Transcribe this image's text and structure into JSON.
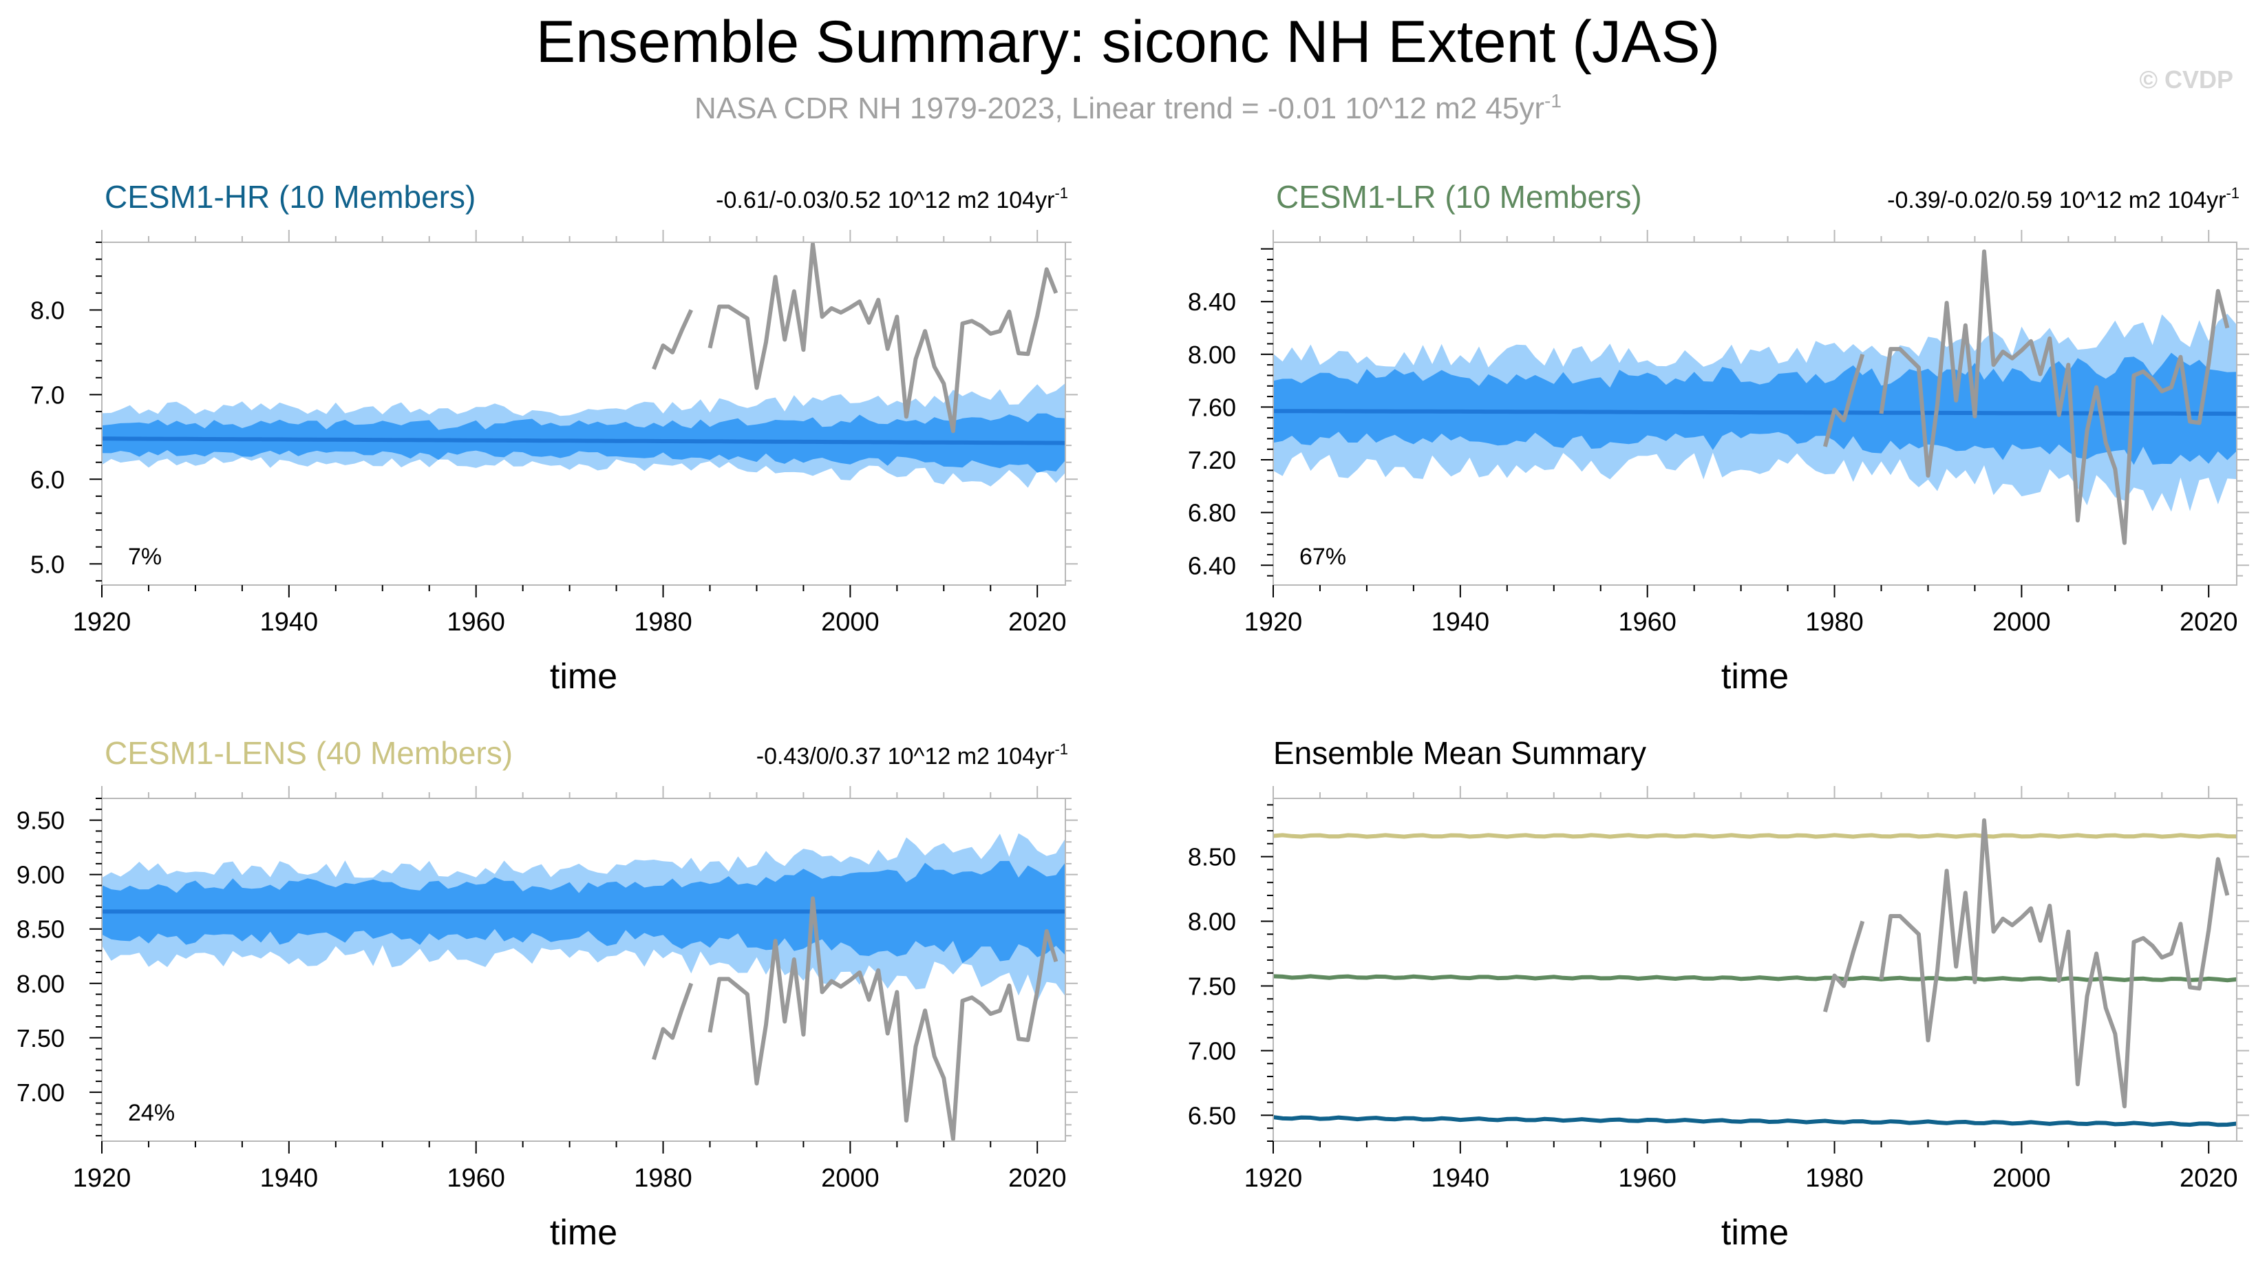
{
  "figure": {
    "title": "Ensemble Summary: siconc NH Extent (JAS)",
    "subtitle_base": "NASA CDR NH 1979-2023, Linear trend = -0.01 10^12 m2 45yr",
    "subtitle_exp": "-1",
    "watermark": "© CVDP"
  },
  "colors": {
    "band_outer": "#9fd0fb",
    "band_inner": "#3a9cf5",
    "ens_mean": "#1f78d8",
    "obs": "#999999",
    "axis": "#000000",
    "title": "#000000",
    "subtitle": "#a0a0a0",
    "watermark": "#d6d6d6"
  },
  "obs_years": [
    1979,
    1980,
    1981,
    1982,
    1983,
    1984,
    1985,
    1986,
    1987,
    1988,
    1989,
    1990,
    1991,
    1992,
    1993,
    1994,
    1995,
    1996,
    1997,
    1998,
    1999,
    2000,
    2001,
    2002,
    2003,
    2004,
    2005,
    2006,
    2007,
    2008,
    2009,
    2010,
    2011,
    2012,
    2013,
    2014,
    2015,
    2016,
    2017,
    2018,
    2019,
    2020,
    2021,
    2022,
    2023
  ],
  "obs_values": [
    7.3,
    7.58,
    7.5,
    7.76,
    8.0,
    null,
    7.55,
    8.04,
    8.04,
    7.97,
    7.9,
    7.08,
    7.62,
    8.39,
    7.65,
    8.22,
    7.53,
    8.78,
    7.92,
    8.02,
    7.97,
    8.03,
    8.1,
    7.85,
    8.12,
    7.54,
    7.92,
    6.74,
    7.42,
    7.75,
    7.33,
    7.13,
    6.57,
    7.84,
    7.87,
    7.81,
    7.72,
    7.75,
    7.98,
    7.49,
    7.48,
    7.93,
    8.48,
    8.2,
    null
  ],
  "charts": [
    {
      "type": "area",
      "title": "CESM1-HR (10 Members)",
      "title_color": "#10628c",
      "trend_base": "-0.61/-0.03/0.52 10^12 m2 104yr",
      "trend_exp": "-1",
      "percent_label": "7%",
      "xlabel": "time",
      "xlim": [
        1920,
        2023
      ],
      "xticks": [
        1920,
        1940,
        1960,
        1980,
        2000,
        2020
      ],
      "xtick_labels": [
        "1920",
        "1940",
        "1960",
        "1980",
        "2000",
        "2020"
      ],
      "ylim": [
        4.75,
        8.8
      ],
      "yticks": [
        5.0,
        6.0,
        7.0,
        8.0
      ],
      "ytick_labels": [
        "5.0",
        "6.0",
        "7.0",
        "8.0"
      ],
      "ens": {
        "mean": 6.48,
        "slope": -0.0005,
        "s1": 0.19,
        "s2": 0.17,
        "o1": 0.36,
        "o2": 0.26,
        "amp": 0.6,
        "seed": 11
      }
    },
    {
      "type": "area",
      "title": "CESM1-LR (10 Members)",
      "title_color": "#5f8a5f",
      "trend_base": "-0.39/-0.02/0.59 10^12 m2 104yr",
      "trend_exp": "-1",
      "percent_label": "67%",
      "xlabel": "time",
      "xlim": [
        1920,
        2023
      ],
      "xticks": [
        1920,
        1940,
        1960,
        1980,
        2000,
        2020
      ],
      "xtick_labels": [
        "1920",
        "1940",
        "1960",
        "1980",
        "2000",
        "2020"
      ],
      "ylim": [
        6.25,
        8.85
      ],
      "yticks": [
        6.4,
        6.8,
        7.2,
        7.6,
        8.0,
        8.4
      ],
      "ytick_labels": [
        "6.40",
        "6.80",
        "7.20",
        "7.60",
        "8.00",
        "8.40"
      ],
      "ens": {
        "mean": 7.57,
        "slope": -0.0002,
        "s1": 0.26,
        "s2": 0.22,
        "o1": 0.42,
        "o2": 0.38,
        "amp": 0.55,
        "seed": 23
      }
    },
    {
      "type": "area",
      "title": "CESM1-LENS (40 Members)",
      "title_color": "#cbc483",
      "trend_base": "-0.43/0/0.37 10^12 m2 104yr",
      "trend_exp": "-1",
      "percent_label": "24%",
      "xlabel": "time",
      "xlim": [
        1920,
        2023
      ],
      "xticks": [
        1920,
        1940,
        1960,
        1980,
        2000,
        2020
      ],
      "xtick_labels": [
        "1920",
        "1940",
        "1960",
        "1980",
        "2000",
        "2020"
      ],
      "ylim": [
        6.55,
        9.7
      ],
      "yticks": [
        7.0,
        7.5,
        8.0,
        8.5,
        9.0,
        9.5
      ],
      "ytick_labels": [
        "7.00",
        "7.50",
        "8.00",
        "8.50",
        "9.00",
        "9.50"
      ],
      "ens": {
        "mean": 8.66,
        "slope": 0.0,
        "s1": 0.24,
        "s2": 0.24,
        "o1": 0.38,
        "o2": 0.38,
        "amp": 0.7,
        "seed": 37
      }
    },
    {
      "type": "line",
      "title": "Ensemble Mean Summary",
      "title_color": "#000000",
      "xlabel": "time",
      "xlim": [
        1920,
        2023
      ],
      "xticks": [
        1920,
        1940,
        1960,
        1980,
        2000,
        2020
      ],
      "xtick_labels": [
        "1920",
        "1940",
        "1960",
        "1980",
        "2000",
        "2020"
      ],
      "ylim": [
        6.3,
        8.95
      ],
      "yticks": [
        6.5,
        7.0,
        7.5,
        8.0,
        8.5
      ],
      "ytick_labels": [
        "6.50",
        "7.00",
        "7.50",
        "8.00",
        "8.50"
      ],
      "series": [
        {
          "name": "CESM1-LENS",
          "color": "#cbc483",
          "start": 8.66,
          "end": 8.66
        },
        {
          "name": "CESM1-LR",
          "color": "#5f8a5f",
          "start": 7.57,
          "end": 7.55
        },
        {
          "name": "CESM1-HR",
          "color": "#10628c",
          "start": 6.48,
          "end": 6.43
        }
      ]
    }
  ]
}
